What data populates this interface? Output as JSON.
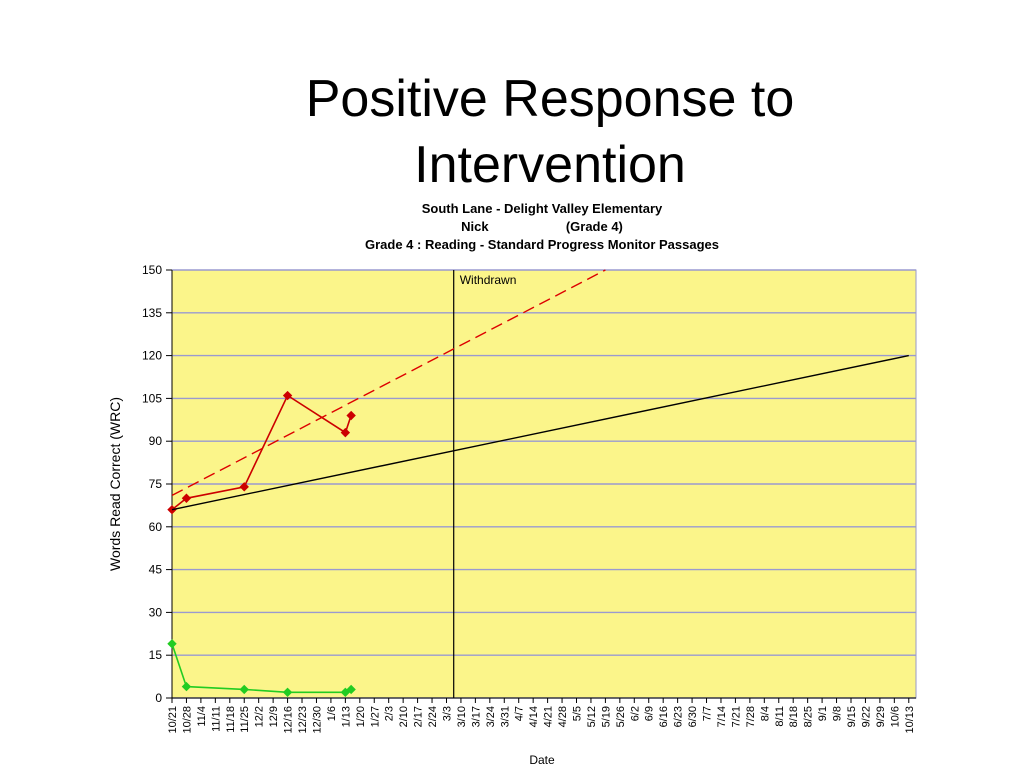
{
  "slide": {
    "title": "Positive Response to Intervention"
  },
  "chart_data": {
    "type": "line",
    "header": {
      "line1": "South Lane - Delight Valley Elementary",
      "student": "Nick",
      "grade": "(Grade 4)",
      "line3": "Grade 4 : Reading - Standard Progress Monitor Passages"
    },
    "xlabel": "Date",
    "ylabel": "Words Read Correct (WRC)",
    "ylim": [
      0,
      150
    ],
    "yticks": [
      0,
      15,
      30,
      45,
      60,
      75,
      90,
      105,
      120,
      135,
      150
    ],
    "grid": true,
    "background": "#fbf58a",
    "categories": [
      "10/21",
      "10/28",
      "11/4",
      "11/11",
      "11/18",
      "11/25",
      "12/2",
      "12/9",
      "12/16",
      "12/23",
      "12/30",
      "1/6",
      "1/13",
      "1/20",
      "1/27",
      "2/3",
      "2/10",
      "2/17",
      "2/24",
      "3/3",
      "3/10",
      "3/17",
      "3/24",
      "3/31",
      "4/7",
      "4/14",
      "4/21",
      "4/28",
      "5/5",
      "5/12",
      "5/19",
      "5/26",
      "6/2",
      "6/9",
      "6/16",
      "6/23",
      "6/30",
      "7/7",
      "7/14",
      "7/21",
      "7/28",
      "8/4",
      "8/11",
      "8/18",
      "8/25",
      "9/1",
      "9/8",
      "9/15",
      "9/22",
      "9/29",
      "10/6",
      "10/13"
    ],
    "annotation": {
      "label": "Withdrawn",
      "at_index": 19.5
    },
    "series": [
      {
        "role": "wrc",
        "color": "#cc0000",
        "marker": "diamond",
        "points": [
          [
            0,
            66
          ],
          [
            1,
            70
          ],
          [
            5,
            74
          ],
          [
            8,
            106
          ],
          [
            12,
            93
          ],
          [
            12.4,
            99
          ]
        ]
      },
      {
        "role": "errors",
        "color": "#22cc22",
        "marker": "diamond",
        "points": [
          [
            0,
            19
          ],
          [
            1,
            4
          ],
          [
            5,
            3
          ],
          [
            8,
            2
          ],
          [
            12,
            2
          ],
          [
            12.4,
            3
          ]
        ]
      },
      {
        "role": "aimline",
        "color": "#000000",
        "style": "solid",
        "points": [
          [
            0,
            66
          ],
          [
            51,
            120
          ]
        ]
      },
      {
        "role": "trend",
        "color": "#dd0000",
        "style": "dashed",
        "points": [
          [
            0,
            71
          ],
          [
            30,
            150
          ]
        ]
      }
    ]
  }
}
